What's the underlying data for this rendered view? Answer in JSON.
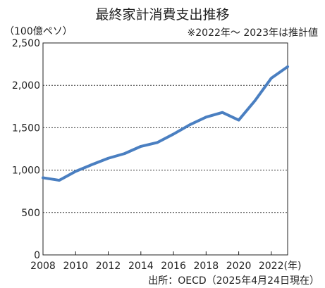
{
  "title": "最終家計消費支出推移",
  "unit_label": "（100億ペソ）",
  "note": "※2022年〜 2023年は推計値",
  "source": "出所：OECD（2025年4月24日現在）",
  "colors": {
    "line": "#4a7fc1",
    "grid": "#333333",
    "frame": "#222222"
  },
  "chart_data": {
    "type": "line",
    "title": "最終家計消費支出推移",
    "xlabel": "",
    "ylabel": "（100億ペソ）",
    "x": [
      2008,
      2009,
      2010,
      2011,
      2012,
      2013,
      2014,
      2015,
      2016,
      2017,
      2018,
      2019,
      2020,
      2021,
      2022,
      2023
    ],
    "values": [
      910,
      880,
      985,
      1065,
      1140,
      1195,
      1280,
      1325,
      1425,
      1535,
      1625,
      1680,
      1590,
      1820,
      2085,
      2220
    ],
    "ylim": [
      0,
      2500
    ],
    "xlim": [
      2008,
      2023
    ],
    "yticks": [
      "0",
      "500",
      "1,000",
      "1,500",
      "2,000",
      "2,500"
    ],
    "ytick_values": [
      0,
      500,
      1000,
      1500,
      2000,
      2500
    ],
    "xticks": [
      "2008",
      "2010",
      "2012",
      "2014",
      "2016",
      "2018",
      "2020",
      "2022(年)"
    ],
    "xtick_values": [
      2008,
      2010,
      2012,
      2014,
      2016,
      2018,
      2020,
      2022
    ],
    "grid": "horizontal dashed",
    "legend": "none"
  }
}
